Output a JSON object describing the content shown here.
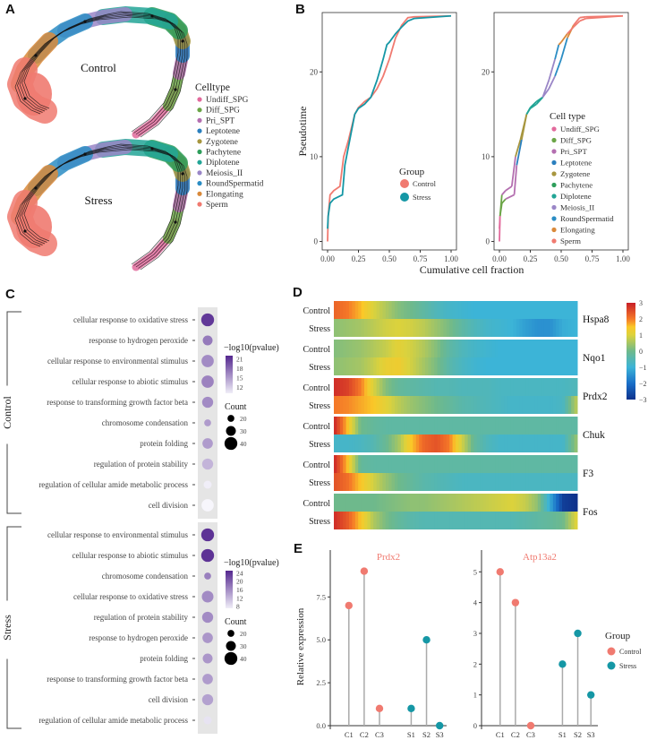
{
  "panels": {
    "A": {
      "label": "A",
      "conditions": [
        "Control",
        "Stress"
      ],
      "legend_title": "Celltype",
      "celltypes": [
        {
          "name": "Undiff_SPG",
          "color": "#E26A9C"
        },
        {
          "name": "Diff_SPG",
          "color": "#6BA547"
        },
        {
          "name": "Pri_SPT",
          "color": "#B46FB0"
        },
        {
          "name": "Leptotene",
          "color": "#2A7FBE"
        },
        {
          "name": "Zygotene",
          "color": "#A7963F"
        },
        {
          "name": "Pachytene",
          "color": "#2E9E5B"
        },
        {
          "name": "Diplotene",
          "color": "#22A596"
        },
        {
          "name": "Meiosis_II",
          "color": "#9A86C7"
        },
        {
          "name": "RoundSpermatid",
          "color": "#2B8DC4"
        },
        {
          "name": "Elongating",
          "color": "#D9893A"
        },
        {
          "name": "Sperm",
          "color": "#F07A70"
        }
      ]
    },
    "B": {
      "label": "B"
    },
    "C": {
      "label": "C"
    },
    "D": {
      "label": "D"
    },
    "E": {
      "label": "E"
    }
  },
  "chart_data": [
    {
      "id": "B-left",
      "type": "line",
      "xlabel": "Cumulative cell fraction",
      "ylabel": "Pseudotime",
      "xlim": [
        0,
        1
      ],
      "ylim": [
        -1,
        27
      ],
      "xticks": [
        "0.00",
        "0.25",
        "0.50",
        "0.75",
        "1.00"
      ],
      "yticks": [
        0,
        10,
        20
      ],
      "legend": {
        "title": "Group",
        "position": "bottom-right"
      },
      "series": [
        {
          "name": "Control",
          "color": "#F07A70",
          "x": [
            0,
            0.005,
            0.02,
            0.05,
            0.1,
            0.13,
            0.17,
            0.22,
            0.25,
            0.3,
            0.35,
            0.4,
            0.45,
            0.5,
            0.55,
            0.6,
            0.65,
            0.7,
            1.0
          ],
          "y": [
            0,
            3,
            5.5,
            6,
            6.5,
            10,
            12,
            15,
            15.8,
            16.5,
            17,
            18,
            19.5,
            21.5,
            24,
            25.5,
            26.4,
            26.5,
            26.6
          ]
        },
        {
          "name": "Stress",
          "color": "#1597A5",
          "x": [
            0,
            0.005,
            0.02,
            0.05,
            0.12,
            0.14,
            0.18,
            0.22,
            0.25,
            0.3,
            0.35,
            0.4,
            0.45,
            0.48,
            0.5,
            0.55,
            0.6,
            0.65,
            0.7,
            1.0
          ],
          "y": [
            1.5,
            3,
            4.5,
            5,
            5.5,
            9,
            12,
            15,
            15.7,
            16.2,
            17,
            19,
            21.5,
            23.2,
            23.5,
            24.5,
            25.3,
            26,
            26.3,
            26.6
          ]
        }
      ]
    },
    {
      "id": "B-right",
      "type": "line",
      "xlabel": "Cumulative cell fraction",
      "ylabel": "",
      "xlim": [
        0,
        1
      ],
      "ylim": [
        -1,
        27
      ],
      "xticks": [
        "0.00",
        "0.25",
        "0.50",
        "0.75",
        "1.00"
      ],
      "yticks": [
        0,
        10,
        20
      ],
      "legend": {
        "title": "Cell type",
        "position": "bottom-right",
        "entries": [
          "Undiff_SPG",
          "Diff_SPG",
          "Pri_SPT",
          "Leptotene",
          "Zygotene",
          "Pachytene",
          "Diplotene",
          "Meiosis_II",
          "RoundSpermatid",
          "Elongating",
          "Sperm"
        ]
      },
      "note": "Same two curves as left, colored by cell type segment"
    },
    {
      "id": "C-control",
      "type": "scatter",
      "group": "Control",
      "terms": [
        "cellular response to oxidative stress",
        "response to hydrogen peroxide",
        "cellular response to environmental stimulus",
        "cellular response to abiotic stimulus",
        "response to transforming growth factor beta",
        "chromosome condensation",
        "protein folding",
        "regulation of protein stability",
        "regulation of cellular amide metabolic process",
        "cell division"
      ],
      "neg_log10_pvalue": [
        21,
        17,
        16,
        16.5,
        16,
        15,
        15,
        13.5,
        10,
        9.5
      ],
      "count": [
        40,
        30,
        38,
        38,
        34,
        20,
        32,
        34,
        24,
        38
      ],
      "color_legend": {
        "title": "−log10(pvalue)",
        "ticks": [
          12,
          15,
          18,
          21
        ],
        "range": [
          10,
          22
        ]
      },
      "size_legend": {
        "title": "Count",
        "ticks": [
          20,
          30,
          40
        ]
      }
    },
    {
      "id": "C-stress",
      "type": "scatter",
      "group": "Stress",
      "terms": [
        "cellular response to environmental stimulus",
        "cellular response to abiotic stimulus",
        "chromosome condensation",
        "cellular response to oxidative stress",
        "regulation of protein stability",
        "response to hydrogen peroxide",
        "protein folding",
        "response to transforming growth factor beta",
        "cell division",
        "regulation of cellular amide metabolic process"
      ],
      "neg_log10_pvalue": [
        24,
        24,
        17,
        16,
        16,
        15,
        15,
        14.5,
        14,
        8
      ],
      "count": [
        40,
        40,
        20,
        36,
        34,
        32,
        30,
        32,
        34,
        24
      ],
      "color_legend": {
        "title": "−log10(pvalue)",
        "ticks": [
          8,
          12,
          16,
          20,
          24
        ],
        "range": [
          7,
          25
        ]
      },
      "size_legend": {
        "title": "Count",
        "ticks": [
          20,
          30,
          40
        ]
      }
    },
    {
      "id": "D",
      "type": "heatmap",
      "genes": [
        "Hspa8",
        "Nqo1",
        "Prdx2",
        "Chuk",
        "F3",
        "Fos"
      ],
      "rows": [
        "Control",
        "Stress"
      ],
      "colorbar": {
        "ticks": [
          3,
          2,
          1,
          0,
          -1,
          -2,
          -3
        ],
        "range": [
          -3,
          3
        ]
      },
      "profiles": {
        "Hspa8": {
          "Control": [
            2.2,
            2.0,
            1.6,
            1.0,
            0.6,
            0.2,
            0,
            -0.3,
            -0.6,
            -0.8,
            -0.9,
            -1,
            -1,
            -1,
            -1,
            -1,
            -1,
            -1,
            -1,
            -1
          ],
          "Stress": [
            0.3,
            0.4,
            0.5,
            0.7,
            0.9,
            1.0,
            0.9,
            0.7,
            0.4,
            0.1,
            -0.3,
            -0.6,
            -0.8,
            -0.9,
            -1,
            -1.3,
            -1.5,
            -1.5,
            -1.1,
            -1
          ]
        },
        "Nqo1": {
          "Control": [
            0.2,
            0.3,
            0.4,
            0.6,
            0.8,
            1.1,
            0.9,
            0.6,
            0.2,
            -0.3,
            -0.6,
            -0.8,
            -0.9,
            -1,
            -1,
            -1,
            -1,
            -1,
            -1,
            -1
          ],
          "Stress": [
            0.3,
            0.4,
            0.5,
            0.8,
            1.2,
            1.3,
            0.9,
            0.5,
            0.1,
            -0.4,
            -0.7,
            -0.9,
            -1,
            -1,
            -1,
            -1,
            -1,
            -1,
            -1,
            -1
          ]
        },
        "Prdx2": {
          "Control": [
            2.8,
            2.6,
            2.0,
            1.0,
            0.2,
            -0.2,
            -0.3,
            -0.4,
            -0.5,
            -0.5,
            -0.6,
            -0.6,
            -0.6,
            -0.7,
            -0.7,
            -0.7,
            -0.7,
            -0.7,
            -0.7,
            -0.6
          ],
          "Stress": [
            2.0,
            1.9,
            1.7,
            1.5,
            1.1,
            0.7,
            0.4,
            0.2,
            0,
            -0.2,
            -0.4,
            -0.5,
            -0.6,
            -0.7,
            -0.8,
            -0.8,
            -0.8,
            -0.8,
            -0.7,
            0.6
          ]
        },
        "Chuk": {
          "Control": [
            2.8,
            1.5,
            0,
            -0.2,
            -0.3,
            -0.3,
            -0.3,
            -0.3,
            -0.3,
            -0.3,
            -0.3,
            -0.3,
            -0.3,
            -0.3,
            -0.3,
            -0.3,
            -0.3,
            -0.3,
            -0.3,
            -0.3
          ],
          "Stress": [
            -0.8,
            -0.8,
            -0.7,
            -0.5,
            -0.1,
            0.5,
            1.5,
            2.2,
            2.4,
            2.0,
            0.9,
            -0.2,
            -0.6,
            -0.8,
            -0.8,
            -0.8,
            -0.8,
            -0.8,
            -0.8,
            0.3
          ]
        },
        "F3": {
          "Control": [
            2.8,
            1.5,
            -0.2,
            -0.3,
            -0.3,
            -0.3,
            -0.3,
            -0.3,
            -0.3,
            -0.3,
            -0.3,
            -0.3,
            -0.3,
            -0.3,
            -0.3,
            -0.3,
            -0.3,
            -0.3,
            -0.3,
            -0.3
          ],
          "Stress": [
            2.4,
            2.1,
            1.5,
            0.9,
            0.4,
            0,
            -0.2,
            -0.4,
            -0.5,
            -0.6,
            -0.7,
            -0.7,
            -0.7,
            -0.7,
            -0.7,
            -0.7,
            -0.7,
            -0.7,
            -0.7,
            -0.7
          ]
        },
        "Fos": {
          "Control": [
            0,
            0,
            0,
            0,
            0.1,
            0.2,
            0.3,
            0.3,
            0.4,
            0.5,
            0.6,
            0.7,
            0.8,
            0.9,
            1.0,
            0.8,
            0.3,
            -1.2,
            -2.8,
            -3
          ],
          "Stress": [
            2.8,
            2.3,
            1.5,
            0.6,
            0.1,
            -0.2,
            -0.4,
            -0.5,
            -0.5,
            -0.5,
            -0.5,
            -0.5,
            -0.5,
            -0.5,
            -0.5,
            -0.4,
            -0.3,
            -0.2,
            0,
            1.0
          ]
        }
      }
    },
    {
      "id": "E-Prdx2",
      "type": "scatter",
      "subtype": "lollipop",
      "title": "Prdx2",
      "ylabel": "Relative expression",
      "categories": [
        "C1",
        "C2",
        "C3",
        "S1",
        "S2",
        "S3"
      ],
      "values": [
        7,
        9,
        1,
        1,
        5,
        0
      ],
      "groups": [
        "Control",
        "Control",
        "Control",
        "Stress",
        "Stress",
        "Stress"
      ],
      "yticks": [
        "0.0",
        "2.5",
        "5.0",
        "7.5"
      ],
      "ylim": [
        0,
        9.5
      ]
    },
    {
      "id": "E-Atp13a2",
      "type": "scatter",
      "subtype": "lollipop",
      "title": "Atp13a2",
      "ylabel": "",
      "categories": [
        "C1",
        "C2",
        "C3",
        "S1",
        "S2",
        "S3"
      ],
      "values": [
        5,
        4,
        0,
        2,
        3,
        1
      ],
      "groups": [
        "Control",
        "Control",
        "Control",
        "Stress",
        "Stress",
        "Stress"
      ],
      "yticks": [
        "0",
        "1",
        "2",
        "3",
        "4",
        "5"
      ],
      "ylim": [
        0,
        5.3
      ],
      "legend": {
        "title": "Group",
        "entries": [
          "Control",
          "Stress"
        ],
        "position": "right"
      }
    }
  ],
  "colors": {
    "control": "#F07A70",
    "stress": "#1597A5",
    "axis": "#333333",
    "lollipop_stem": "#AAAAAA",
    "dotplot_bg": "#E5E5E5",
    "title_E": "#F07A70"
  }
}
